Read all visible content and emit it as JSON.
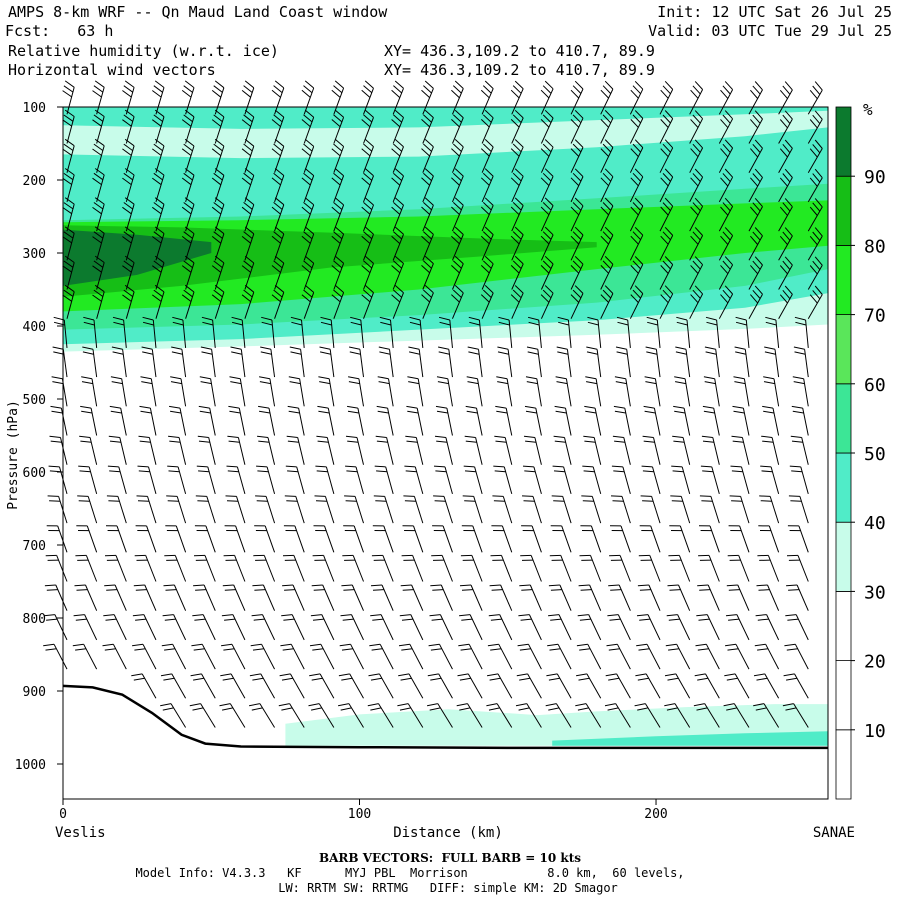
{
  "header": {
    "title": "AMPS 8-km WRF -- Qn Maud Land Coast window",
    "fcst": "Fcst:   63 h",
    "init": "Init: 12 UTC Sat 26 Jul 25",
    "valid": "Valid: 03 UTC Tue 29 Jul 25",
    "field1": "Relative humidity (w.r.t. ice)",
    "field2": "Horizontal wind vectors",
    "xy1": "XY= 436.3,109.2 to 410.7, 89.9",
    "xy2": "XY= 436.3,109.2 to 410.7, 89.9"
  },
  "footer": {
    "barb_note": "BARB VECTORS:  FULL BARB = 10 kts",
    "line1": "Model Info: V4.3.3   KF      MYJ PBL  Morrison           8.0 km,  60 levels,",
    "line2": "LW: RRTM SW: RRTMG   DIFF: simple KM: 2D Smagor"
  },
  "chart_data": {
    "type": "heatmap",
    "xlabel": "Distance (km)",
    "ylabel": "Pressure (hPa)",
    "xlim": [
      0,
      258
    ],
    "ylim": [
      1050,
      100
    ],
    "x_ticks": [
      0,
      100,
      200
    ],
    "y_ticks": [
      100,
      200,
      300,
      400,
      500,
      600,
      700,
      800,
      900,
      1000
    ],
    "x_endpoint_labels": {
      "left": "Veslis",
      "right": "SANAE"
    },
    "colorbar": {
      "unit": "%",
      "levels": [
        0,
        10,
        20,
        30,
        40,
        50,
        60,
        70,
        80,
        90,
        100
      ],
      "tick_labels": [
        "10",
        "20",
        "30",
        "40",
        "50",
        "60",
        "70",
        "80",
        "90"
      ],
      "colors": [
        "#ffffff",
        "#ffffff",
        "#ffffff",
        "#c8fcea",
        "#50ecc8",
        "#3ce696",
        "#5ae65a",
        "#22ea22",
        "#16be16",
        "#0c7a2e"
      ]
    },
    "humidity_bands": [
      {
        "level": 30,
        "top": [
          [
            0,
            100
          ],
          [
            258,
            100
          ]
        ],
        "bottom": [
          [
            0,
            435
          ],
          [
            60,
            428
          ],
          [
            120,
            420
          ],
          [
            180,
            412
          ],
          [
            230,
            404
          ],
          [
            258,
            398
          ]
        ]
      },
      {
        "level": 40,
        "top": [
          [
            0,
            100
          ],
          [
            258,
            100
          ]
        ],
        "bottom": [
          [
            0,
            425
          ],
          [
            60,
            418
          ],
          [
            120,
            405
          ],
          [
            180,
            392
          ],
          [
            230,
            375
          ],
          [
            258,
            355
          ]
        ]
      },
      {
        "level": 30,
        "top": [
          [
            0,
            125
          ],
          [
            60,
            130
          ],
          [
            120,
            128
          ],
          [
            180,
            118
          ],
          [
            230,
            110
          ],
          [
            258,
            105
          ]
        ],
        "bottom": [
          [
            0,
            165
          ],
          [
            60,
            170
          ],
          [
            120,
            168
          ],
          [
            180,
            155
          ],
          [
            230,
            140
          ],
          [
            258,
            128
          ]
        ]
      },
      {
        "level": 50,
        "top": [
          [
            0,
            255
          ],
          [
            60,
            250
          ],
          [
            120,
            240
          ],
          [
            180,
            225
          ],
          [
            230,
            212
          ],
          [
            258,
            205
          ]
        ],
        "bottom": [
          [
            0,
            405
          ],
          [
            60,
            398
          ],
          [
            120,
            385
          ],
          [
            180,
            368
          ],
          [
            230,
            345
          ],
          [
            258,
            322
          ]
        ]
      },
      {
        "level": 70,
        "top": [
          [
            0,
            258
          ],
          [
            60,
            255
          ],
          [
            120,
            250
          ],
          [
            180,
            240
          ],
          [
            230,
            232
          ],
          [
            258,
            228
          ]
        ],
        "bottom": [
          [
            0,
            380
          ],
          [
            60,
            370
          ],
          [
            120,
            350
          ],
          [
            180,
            322
          ],
          [
            230,
            300
          ],
          [
            258,
            290
          ]
        ]
      },
      {
        "level": 80,
        "top": [
          [
            0,
            262
          ],
          [
            40,
            265
          ],
          [
            90,
            272
          ],
          [
            140,
            280
          ],
          [
            180,
            285
          ]
        ],
        "bottom": [
          [
            0,
            360
          ],
          [
            40,
            345
          ],
          [
            90,
            320
          ],
          [
            140,
            305
          ],
          [
            180,
            292
          ]
        ]
      },
      {
        "level": 90,
        "top": [
          [
            0,
            268
          ],
          [
            25,
            275
          ],
          [
            50,
            285
          ]
        ],
        "bottom": [
          [
            0,
            345
          ],
          [
            25,
            330
          ],
          [
            50,
            300
          ]
        ]
      },
      {
        "level": 30,
        "top": [
          [
            75,
            945
          ],
          [
            100,
            932
          ],
          [
            130,
            925
          ],
          [
            160,
            933
          ],
          [
            180,
            928
          ],
          [
            210,
            922
          ],
          [
            240,
            918
          ],
          [
            258,
            918
          ]
        ],
        "bottom": [
          [
            75,
            975
          ],
          [
            258,
            975
          ]
        ]
      },
      {
        "level": 40,
        "top": [
          [
            165,
            968
          ],
          [
            200,
            962
          ],
          [
            230,
            958
          ],
          [
            258,
            955
          ]
        ],
        "bottom": [
          [
            165,
            975
          ],
          [
            258,
            975
          ]
        ]
      }
    ],
    "terrain_profile": [
      [
        0,
        893
      ],
      [
        10,
        895
      ],
      [
        20,
        905
      ],
      [
        30,
        930
      ],
      [
        40,
        960
      ],
      [
        48,
        972
      ],
      [
        60,
        976
      ],
      [
        100,
        977
      ],
      [
        150,
        978
      ],
      [
        200,
        978
      ],
      [
        258,
        978
      ]
    ],
    "wind_barbs": {
      "columns_km": [
        0,
        10,
        20,
        30,
        40,
        50,
        60,
        70,
        80,
        90,
        100,
        110,
        120,
        130,
        140,
        150,
        160,
        170,
        180,
        190,
        200,
        210,
        220,
        230,
        240,
        250
      ],
      "levels_hpa": [
        110,
        150,
        190,
        230,
        270,
        310,
        350,
        390,
        430,
        470,
        510,
        550,
        590,
        630,
        670,
        710,
        750,
        790,
        830,
        870,
        910,
        950,
        980
      ],
      "full_barb_kts": 10
    }
  }
}
